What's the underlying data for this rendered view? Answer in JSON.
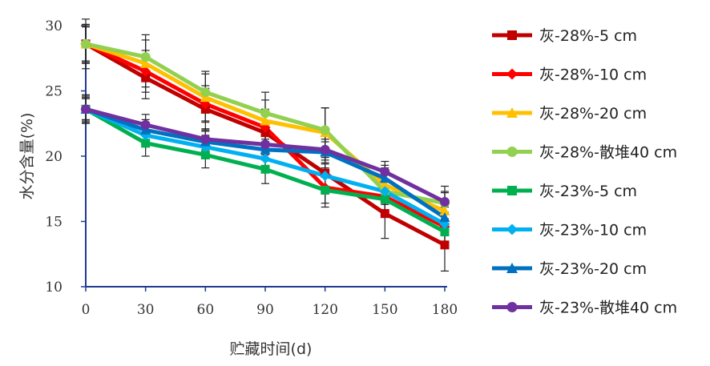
{
  "chart_data": {
    "type": "line",
    "xlabel": "贮藏时间(d)",
    "ylabel": "水分含量(%)",
    "x": [
      0,
      30,
      60,
      90,
      120,
      150,
      180
    ],
    "xlim": [
      0,
      180
    ],
    "ylim": [
      10,
      30
    ],
    "yticks": [
      10,
      15,
      20,
      25,
      30
    ],
    "grid": false,
    "legend_position": "right",
    "series": [
      {
        "name": "灰-28%-5 cm",
        "color": "#c00000",
        "marker": "square",
        "values": [
          28.6,
          26.0,
          23.6,
          21.8,
          18.7,
          15.6,
          13.2
        ],
        "errors": [
          1.9,
          1.6,
          1.6,
          1.5,
          1.6,
          1.9,
          2.0
        ]
      },
      {
        "name": "灰-28%-10 cm",
        "color": "#ff0000",
        "marker": "diamond",
        "values": [
          28.6,
          26.5,
          24.0,
          22.2,
          17.6,
          16.9,
          14.6
        ],
        "errors": [
          1.5,
          1.6,
          1.4,
          1.4,
          1.5,
          1.3,
          1.5
        ]
      },
      {
        "name": "灰-28%-20 cm",
        "color": "#ffc000",
        "marker": "triangle",
        "values": [
          28.6,
          27.1,
          24.5,
          22.7,
          21.8,
          17.8,
          15.8
        ],
        "errors": [
          1.4,
          1.8,
          1.8,
          1.6,
          1.9,
          1.5,
          1.4
        ]
      },
      {
        "name": "灰-28%-散堆40 cm",
        "color": "#92d050",
        "marker": "circle",
        "values": [
          28.6,
          27.6,
          24.9,
          23.3,
          22.0,
          17.3,
          16.4
        ],
        "errors": [
          1.3,
          1.7,
          1.6,
          1.6,
          1.7,
          1.4,
          1.3
        ]
      },
      {
        "name": "灰-23%-5 cm",
        "color": "#00b050",
        "marker": "square",
        "values": [
          23.6,
          21.0,
          20.1,
          19.0,
          17.4,
          16.7,
          14.2
        ],
        "errors": [
          1.1,
          1.0,
          1.0,
          1.1,
          1.0,
          1.0,
          1.0
        ]
      },
      {
        "name": "灰-23%-10 cm",
        "color": "#00b0f0",
        "marker": "diamond",
        "values": [
          23.6,
          21.6,
          20.7,
          19.8,
          18.5,
          17.3,
          14.8
        ],
        "errors": [
          1.0,
          0.9,
          0.9,
          0.8,
          0.9,
          0.9,
          0.9
        ]
      },
      {
        "name": "灰-23%-20 cm",
        "color": "#0070c0",
        "marker": "triangle",
        "values": [
          23.6,
          22.0,
          21.1,
          20.5,
          20.3,
          18.3,
          15.3
        ],
        "errors": [
          0.9,
          0.8,
          0.8,
          0.8,
          0.8,
          0.8,
          0.8
        ]
      },
      {
        "name": "灰-23%-散堆40 cm",
        "color": "#7030a0",
        "marker": "circle",
        "values": [
          23.6,
          22.4,
          21.3,
          20.9,
          20.5,
          18.8,
          16.5
        ],
        "errors": [
          0.8,
          0.8,
          0.8,
          0.7,
          0.8,
          0.8,
          0.8
        ]
      }
    ]
  }
}
